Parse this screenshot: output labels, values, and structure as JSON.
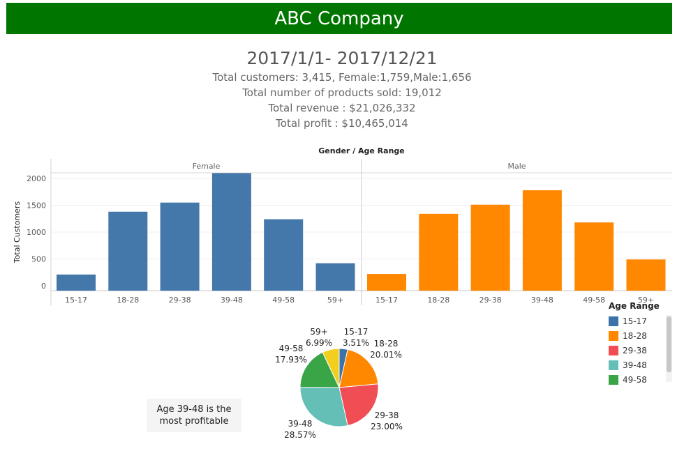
{
  "header": {
    "title": "ABC Company"
  },
  "summary": {
    "date_range": "2017/1/1- 2017/12/21",
    "customers": "Total customers: 3,415, Female:1,759,Male:1,656",
    "products": "Total number of products sold: 19,012",
    "revenue": "Total revenue : $21,026,332",
    "profit": "Total profit : $10,465,014"
  },
  "callout": {
    "text": "Age 39-48 is the most profitable"
  },
  "chart_data": [
    {
      "type": "bar",
      "title": "Gender  /  Age Range",
      "ylabel": "Total Customers",
      "yticks": [
        0,
        500,
        1000,
        1500,
        2000
      ],
      "ylim": [
        0,
        2100
      ],
      "grid": true,
      "panels": [
        {
          "name": "Female",
          "color": "#4477aa",
          "categories": [
            "15-17",
            "18-28",
            "29-38",
            "39-48",
            "49-58",
            "59+"
          ],
          "values": [
            210,
            1380,
            1550,
            2100,
            1240,
            420
          ]
        },
        {
          "name": "Male",
          "color": "#ff8800",
          "categories": [
            "15-17",
            "18-28",
            "29-38",
            "39-48",
            "49-58",
            "59+"
          ],
          "values": [
            220,
            1340,
            1510,
            1780,
            1180,
            490
          ]
        }
      ]
    },
    {
      "type": "pie",
      "legend_title": "Age Range",
      "legend_placement": "right",
      "slices": [
        {
          "label": "15-17",
          "pct_label": "3.51%",
          "value": 3.51,
          "color": "#3c72aa"
        },
        {
          "label": "18-28",
          "pct_label": "20.01%",
          "value": 20.01,
          "color": "#ff8800"
        },
        {
          "label": "29-38",
          "pct_label": "23.00%",
          "value": 23.0,
          "color": "#f14d55"
        },
        {
          "label": "39-48",
          "pct_label": "28.57%",
          "value": 28.57,
          "color": "#64bfb7"
        },
        {
          "label": "49-58",
          "pct_label": "17.93%",
          "value": 17.93,
          "color": "#3aa547"
        },
        {
          "label": "59+",
          "pct_label": "6.99%",
          "value": 6.99,
          "color": "#f2cf1e"
        }
      ],
      "legend_items": [
        {
          "label": "15-17",
          "color": "#3c72aa"
        },
        {
          "label": "18-28",
          "color": "#ff8800"
        },
        {
          "label": "29-38",
          "color": "#f14d55"
        },
        {
          "label": "39-48",
          "color": "#64bfb7"
        },
        {
          "label": "49-58",
          "color": "#3aa547"
        }
      ]
    }
  ]
}
